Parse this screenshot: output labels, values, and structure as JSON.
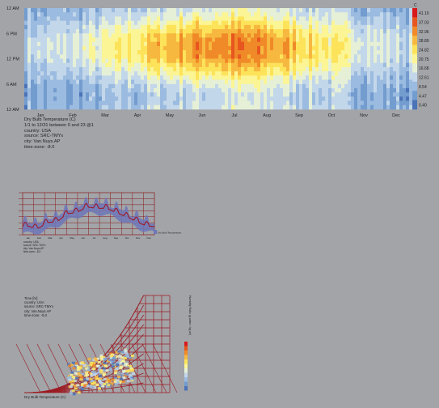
{
  "chart_data": [
    {
      "type": "heatmap",
      "title": "Dry Bulb Temperature (C)",
      "unit": "C",
      "y_ticks": [
        "12 AM",
        "6 PM",
        "12 PM",
        "6 AM",
        "12 AM"
      ],
      "x_ticks": [
        "Jan",
        "Feb",
        "Mar",
        "Apr",
        "May",
        "Jun",
        "Jul",
        "Aug",
        "Sep",
        "Oct",
        "Nov",
        "Dec"
      ],
      "legend_values": [
        "41.10",
        "37.03",
        "32.96",
        "28.89",
        "24.82",
        "20.75",
        "16.68",
        "12.61",
        "8.54",
        "4.47",
        "0.40"
      ],
      "legend_colors": [
        "#d7191c",
        "#e8561f",
        "#f08a28",
        "#f7b840",
        "#fde35a",
        "#fbf595",
        "#e6f0d6",
        "#c3d7ea",
        "#9bbbe0",
        "#739ccf",
        "#4a73b8"
      ],
      "legend_position": "right",
      "value_range": [
        0.4,
        41.1
      ],
      "grid": false
    },
    {
      "type": "line",
      "title": "",
      "legend_label": "Dry Bulb Temperature",
      "x_ticks": [
        "Jan",
        "Feb",
        "Mar",
        "Apr",
        "May",
        "Jun",
        "Jul",
        "Aug",
        "Sep",
        "Oct",
        "Nov",
        "Dec"
      ]
    },
    {
      "type": "scatter",
      "x_label": "Dry Bulb Temperature (C)",
      "y_label": "Humidity Ratio (g water / kg air)"
    }
  ],
  "info": {
    "title": "Dry Bulb Temperature (C)",
    "period": "1/1 to 12/31 between 0 and 23 @1",
    "country": "country: USA",
    "source": "source: SRC-TMYx",
    "city": "city: Van.Nuys.AP",
    "timezone": "time-zone: -8.0"
  },
  "psychro_info": {
    "title": "Time [hr]",
    "country": "country: USA",
    "source": "source: SRC-TMYx",
    "city": "city: Van.Nuys.AP",
    "timezone": "time-zone: -8.0"
  }
}
